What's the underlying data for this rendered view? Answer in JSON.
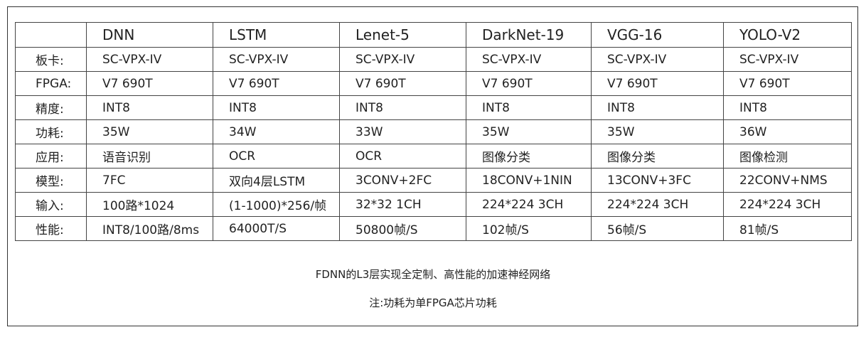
{
  "table": {
    "columns": [
      "",
      "DNN",
      "LSTM",
      "Lenet-5",
      "DarkNet-19",
      "VGG-16",
      "YOLO-V2"
    ],
    "rows": [
      {
        "label": "板卡:",
        "cells": [
          "SC-VPX-IV",
          "SC-VPX-IV",
          "SC-VPX-IV",
          "SC-VPX-IV",
          "SC-VPX-IV",
          "SC-VPX-IV"
        ]
      },
      {
        "label": "FPGA:",
        "cells": [
          "V7 690T",
          "V7 690T",
          "V7 690T",
          "V7 690T",
          "V7 690T",
          "V7 690T"
        ]
      },
      {
        "label": "精度:",
        "cells": [
          "INT8",
          "INT8",
          "INT8",
          "INT8",
          "INT8",
          "INT8"
        ]
      },
      {
        "label": "功耗:",
        "cells": [
          "35W",
          "34W",
          "33W",
          "35W",
          "35W",
          "36W"
        ]
      },
      {
        "label": "应用:",
        "cells": [
          "语音识别",
          "OCR",
          "OCR",
          "图像分类",
          "图像分类",
          "图像检测"
        ]
      },
      {
        "label": "模型:",
        "cells": [
          "7FC",
          "双向4层LSTM",
          "3CONV+2FC",
          "18CONV+1NIN",
          "13CONV+3FC",
          "22CONV+NMS"
        ]
      },
      {
        "label": "输入:",
        "cells": [
          "100路*1024",
          "(1-1000)*256/帧",
          "32*32 1CH",
          "224*224 3CH",
          "224*224 3CH",
          "224*224 3CH"
        ]
      },
      {
        "label": "性能:",
        "cells": [
          "INT8/100路/8ms",
          "64000T/S",
          "50800帧/S",
          "102帧/S",
          "56帧/S",
          "81帧/S"
        ]
      }
    ]
  },
  "captions": {
    "line1": "FDNN的L3层实现全定制、高性能的加速神经网络",
    "line2": "注:功耗为单FPGA芯片功耗"
  }
}
